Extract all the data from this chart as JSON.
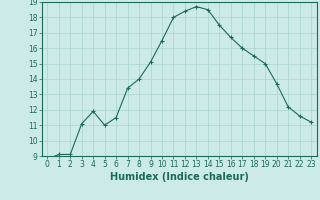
{
  "x": [
    0,
    1,
    2,
    3,
    4,
    5,
    6,
    7,
    8,
    9,
    10,
    11,
    12,
    13,
    14,
    15,
    16,
    17,
    18,
    19,
    20,
    21,
    22,
    23
  ],
  "y": [
    8.8,
    9.1,
    9.1,
    11.1,
    11.9,
    11.0,
    11.5,
    13.4,
    14.0,
    15.1,
    16.5,
    18.0,
    18.4,
    18.7,
    18.5,
    17.5,
    16.7,
    16.0,
    15.5,
    15.0,
    13.7,
    12.2,
    11.6,
    11.2
  ],
  "line_color": "#1a6b5a",
  "marker": "+",
  "marker_size": 3,
  "marker_linewidth": 0.8,
  "bg_color": "#cceae7",
  "grid_color": "#aad4d0",
  "xlabel": "Humidex (Indice chaleur)",
  "ylim": [
    9,
    19
  ],
  "xlim": [
    -0.5,
    23.5
  ],
  "yticks": [
    9,
    10,
    11,
    12,
    13,
    14,
    15,
    16,
    17,
    18,
    19
  ],
  "xticks": [
    0,
    1,
    2,
    3,
    4,
    5,
    6,
    7,
    8,
    9,
    10,
    11,
    12,
    13,
    14,
    15,
    16,
    17,
    18,
    19,
    20,
    21,
    22,
    23
  ],
  "tick_label_fontsize": 5.5,
  "xlabel_fontsize": 7,
  "linewidth": 0.8
}
